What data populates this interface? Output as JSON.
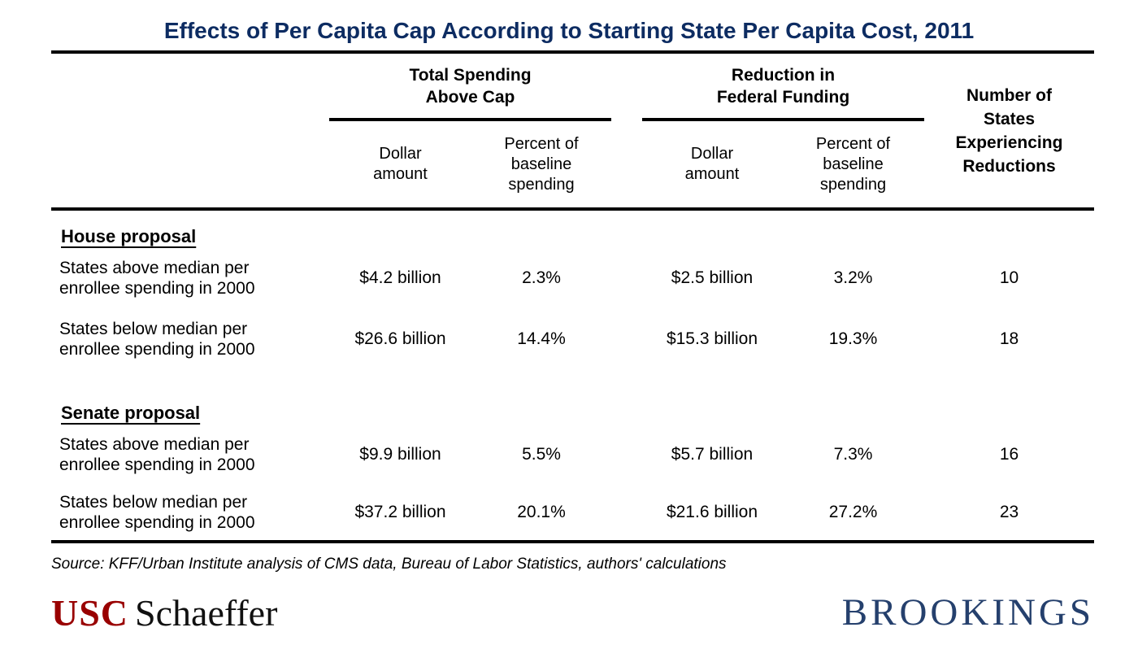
{
  "title": "Effects of Per Capita Cap According to Starting State Per Capita Cost, 2011",
  "colors": {
    "title_navy": "#0d2c62",
    "usc_red": "#990000",
    "brookings_navy": "#25406d",
    "rule_black": "#000000"
  },
  "header": {
    "group1": "Total Spending\nAbove Cap",
    "group2": "Reduction in\nFederal Funding",
    "number": "Number of\nStates\nExperiencing\nReductions",
    "sub_dollar1": "Dollar\namount",
    "sub_pct1": "Percent of\nbaseline\nspending",
    "sub_dollar2": "Dollar\namount",
    "sub_pct2": "Percent of\nbaseline\nspending"
  },
  "sections": [
    {
      "heading": "House proposal",
      "rows": [
        {
          "label": "States above median per\nenrollee spending in 2000",
          "dollar1": "$4.2 billion",
          "pct1": "2.3%",
          "dollar2": "$2.5 billion",
          "pct2": "3.2%",
          "states": "10"
        },
        {
          "label": "States below median per\nenrollee spending in 2000",
          "dollar1": "$26.6 billion",
          "pct1": "14.4%",
          "dollar2": "$15.3 billion",
          "pct2": "19.3%",
          "states": "18"
        }
      ]
    },
    {
      "heading": "Senate proposal",
      "rows": [
        {
          "label": "States above median per\nenrollee spending in 2000",
          "dollar1": "$9.9 billion",
          "pct1": "5.5%",
          "dollar2": "$5.7 billion",
          "pct2": "7.3%",
          "states": "16"
        },
        {
          "label": "States below median per\nenrollee spending in 2000",
          "dollar1": "$37.2 billion",
          "pct1": "20.1%",
          "dollar2": "$21.6 billion",
          "pct2": "27.2%",
          "states": "23"
        }
      ]
    }
  ],
  "source": "Source: KFF/Urban Institute analysis of CMS data, Bureau of Labor Statistics, authors' calculations",
  "logos": {
    "usc": "USC",
    "schaeffer": "Schaeffer",
    "brookings": "BROOKINGS"
  },
  "chart_data": {
    "type": "table",
    "title": "Effects of Per Capita Cap According to Starting State Per Capita Cost, 2011",
    "column_groups": [
      "Total Spending Above Cap",
      "Reduction in Federal Funding"
    ],
    "columns": [
      "Row label",
      "Total Spending Above Cap - Dollar amount",
      "Total Spending Above Cap - Percent of baseline spending",
      "Reduction in Federal Funding - Dollar amount",
      "Reduction in Federal Funding - Percent of baseline spending",
      "Number of States Experiencing Reductions"
    ],
    "rows": [
      [
        "House proposal: States above median per enrollee spending in 2000",
        "$4.2 billion",
        "2.3%",
        "$2.5 billion",
        "3.2%",
        10
      ],
      [
        "House proposal: States below median per enrollee spending in 2000",
        "$26.6 billion",
        "14.4%",
        "$15.3 billion",
        "19.3%",
        18
      ],
      [
        "Senate proposal: States above median per enrollee spending in 2000",
        "$9.9 billion",
        "5.5%",
        "$5.7 billion",
        "7.3%",
        16
      ],
      [
        "Senate proposal: States below median per enrollee spending in 2000",
        "$37.2 billion",
        "20.1%",
        "$21.6 billion",
        "27.2%",
        23
      ]
    ],
    "source": "KFF/Urban Institute analysis of CMS data, Bureau of Labor Statistics, authors' calculations"
  }
}
